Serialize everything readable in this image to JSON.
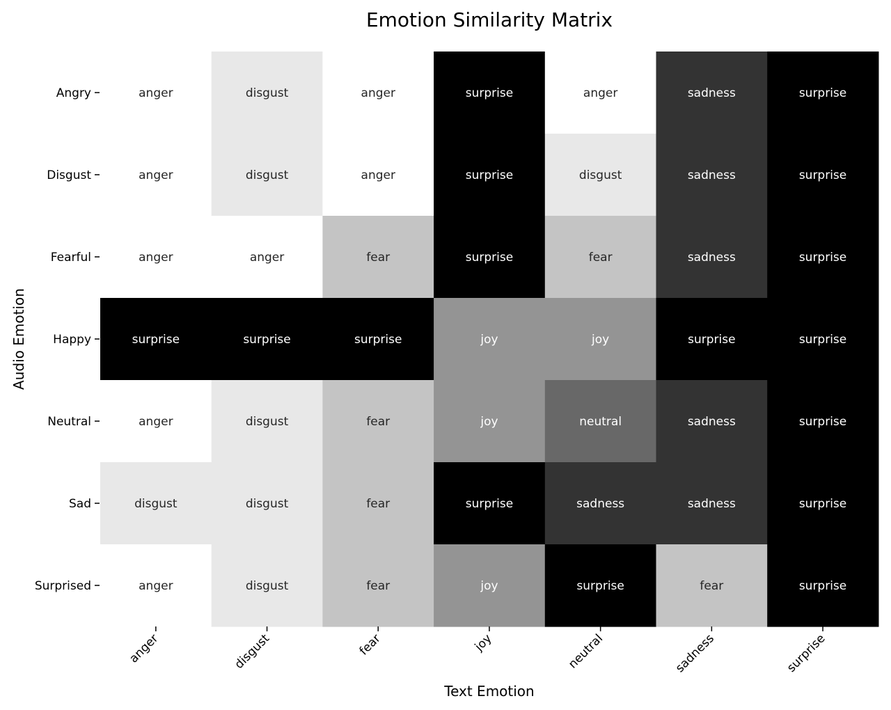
{
  "chart_data": {
    "type": "heatmap",
    "title": "Emotion Similarity Matrix",
    "xlabel": "Text Emotion",
    "ylabel": "Audio Emotion",
    "x_categories": [
      "anger",
      "disgust",
      "fear",
      "joy",
      "neutral",
      "sadness",
      "surprise"
    ],
    "y_categories": [
      "Angry",
      "Disgust",
      "Fearful",
      "Happy",
      "Neutral",
      "Sad",
      "Surprised"
    ],
    "cells": [
      [
        "anger",
        "disgust",
        "anger",
        "surprise",
        "anger",
        "sadness",
        "surprise"
      ],
      [
        "anger",
        "disgust",
        "anger",
        "surprise",
        "disgust",
        "sadness",
        "surprise"
      ],
      [
        "anger",
        "anger",
        "fear",
        "surprise",
        "fear",
        "sadness",
        "surprise"
      ],
      [
        "surprise",
        "surprise",
        "surprise",
        "joy",
        "joy",
        "surprise",
        "surprise"
      ],
      [
        "anger",
        "disgust",
        "fear",
        "joy",
        "neutral",
        "sadness",
        "surprise"
      ],
      [
        "disgust",
        "disgust",
        "fear",
        "surprise",
        "sadness",
        "sadness",
        "surprise"
      ],
      [
        "anger",
        "disgust",
        "fear",
        "joy",
        "surprise",
        "fear",
        "surprise"
      ]
    ],
    "category_colors": {
      "anger": "#ffffff",
      "disgust": "#e8e8e8",
      "fear": "#c4c4c4",
      "joy": "#949494",
      "neutral": "#686868",
      "sadness": "#333333",
      "surprise": "#000000"
    },
    "text_colors": {
      "dark": "#262626",
      "light": "#ffffff"
    },
    "grid": false,
    "colorbar": false
  }
}
